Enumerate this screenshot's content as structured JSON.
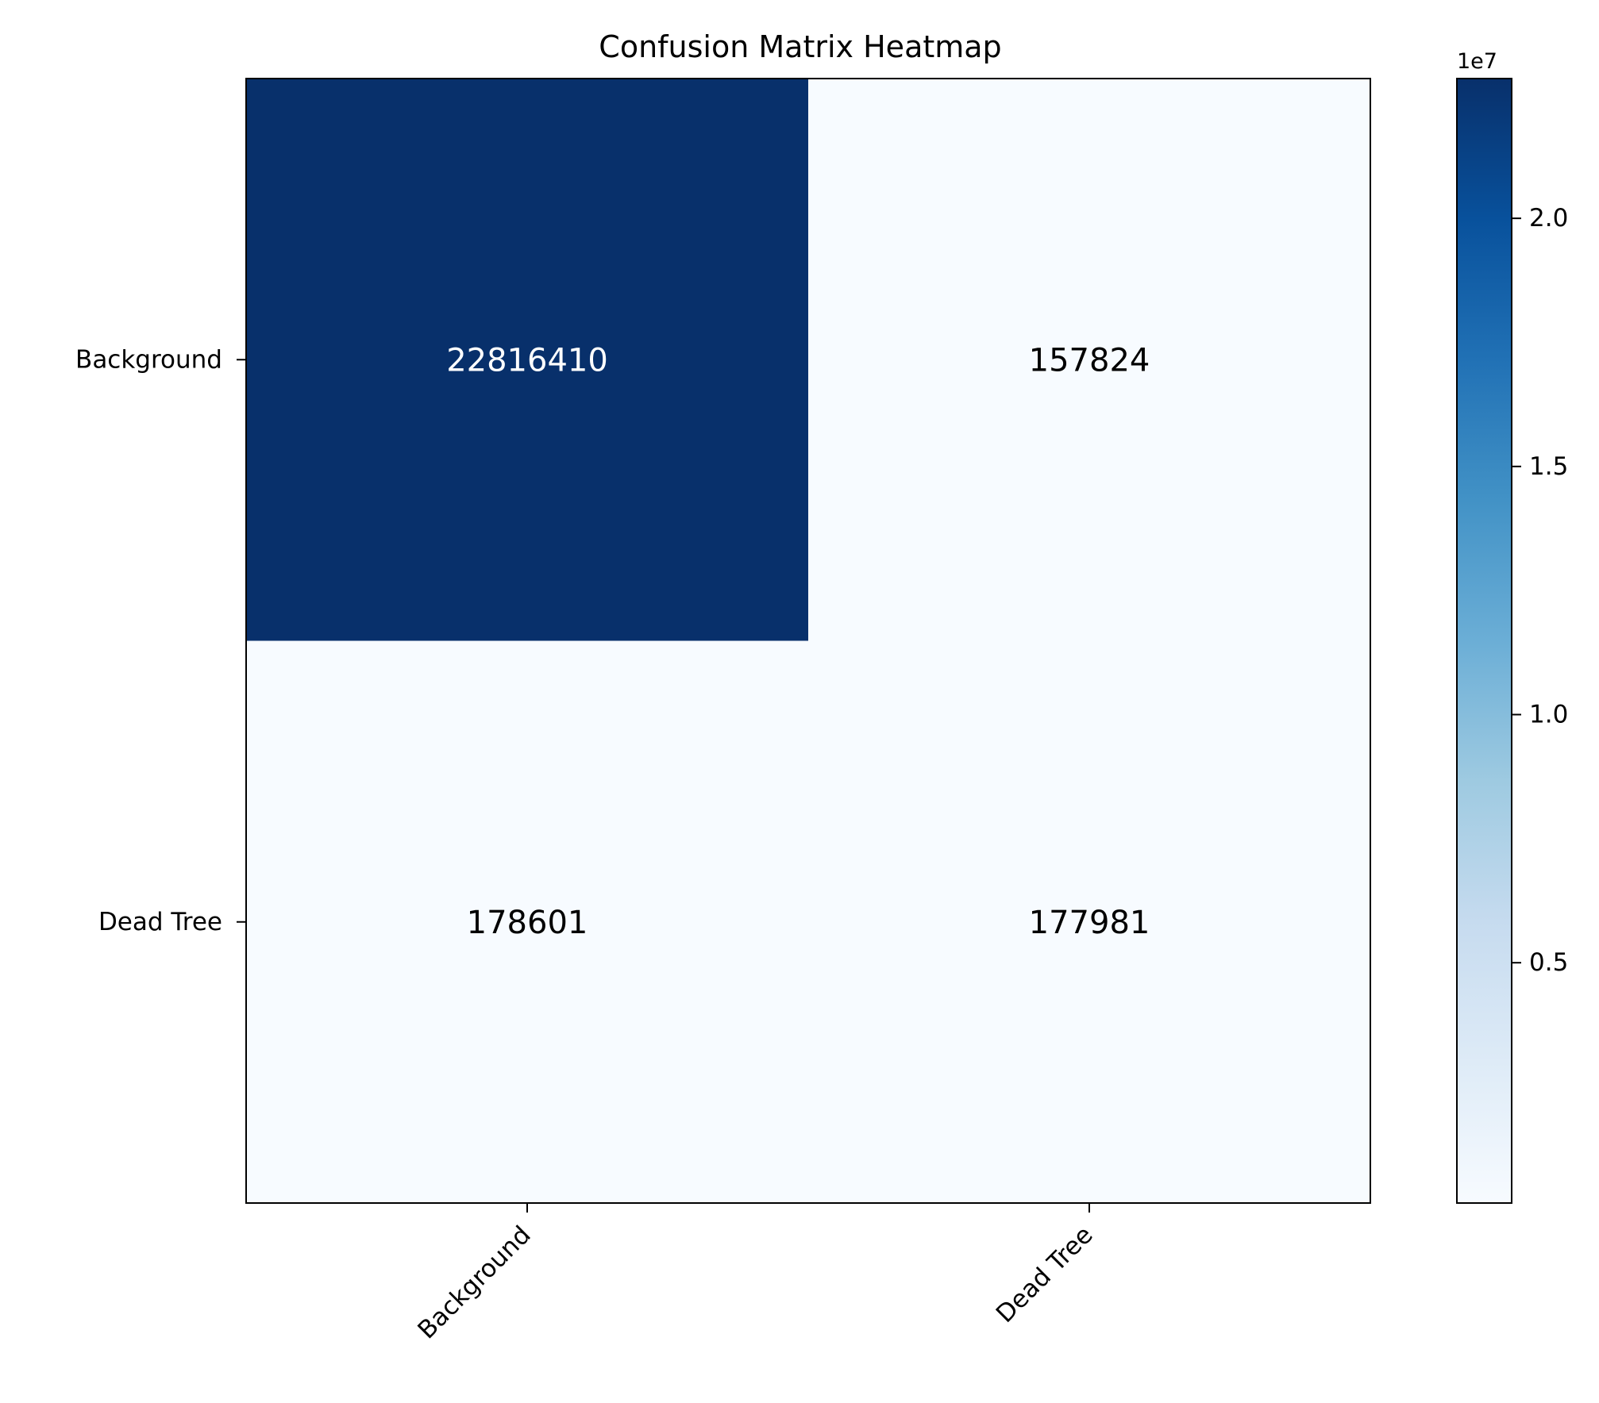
{
  "chart_data": {
    "type": "heatmap",
    "title": "Confusion Matrix Heatmap",
    "xlabel": "",
    "ylabel": "",
    "x_categories": [
      "Background",
      "Dead Tree"
    ],
    "y_categories": [
      "Background",
      "Dead Tree"
    ],
    "values": [
      [
        22816410,
        157824
      ],
      [
        178601,
        177981
      ]
    ],
    "value_labels": [
      [
        "22816410",
        "157824"
      ],
      [
        "178601",
        "177981"
      ]
    ],
    "colormap": "Blues",
    "colorbar": {
      "min": 157824,
      "max": 22816410,
      "ticks": [
        5000000,
        10000000,
        15000000,
        20000000
      ],
      "tick_labels": [
        "0.5",
        "1.0",
        "1.5",
        "2.0"
      ],
      "offset_label": "1e7"
    },
    "grid": false,
    "colors": {
      "low": "#f7fbff",
      "high": "#08306b",
      "text_dark": "#000000",
      "text_light": "#ffffff"
    }
  }
}
